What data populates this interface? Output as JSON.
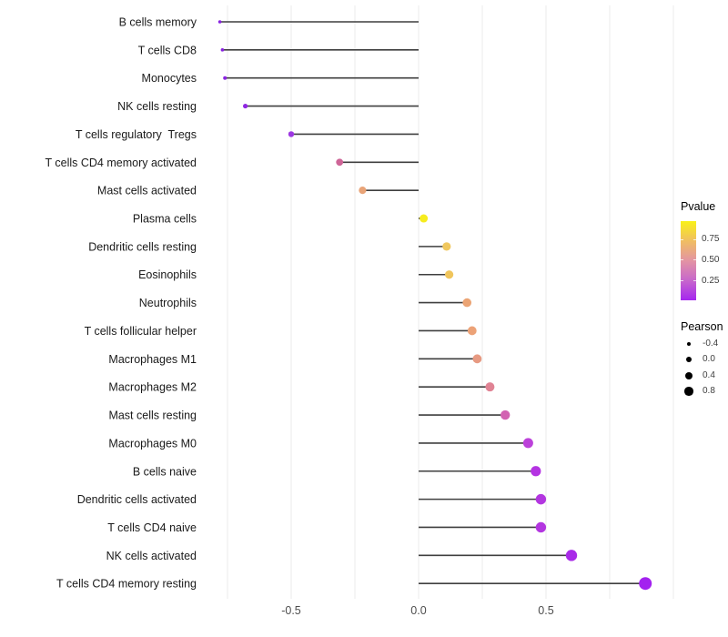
{
  "colors": {
    "background": "#ffffff",
    "grid": "#ebebeb",
    "stem": "#3f3f3f",
    "row_label_text": "#1a1a1a",
    "axis_tick_text": "#4d4d4d",
    "legend_text": "#3f3f3f",
    "legend_dot": "#000000"
  },
  "chart_data": {
    "type": "lollipop",
    "title": "",
    "xlabel": "",
    "ylabel": "",
    "xlim": [
      -0.8,
      1.2
    ],
    "grid": "vertical-only",
    "gridline_values": [
      -0.75,
      -0.5,
      -0.25,
      0,
      0.25,
      0.5,
      0.75,
      1.0
    ],
    "x_ticks": [
      {
        "value": -0.5,
        "label": "-0.5"
      },
      {
        "value": 0.0,
        "label": "0.0"
      },
      {
        "value": 0.5,
        "label": "0.5"
      }
    ],
    "rows": [
      {
        "label": "B cells memory",
        "pearson": -0.78,
        "pvalue": 0.04,
        "color": "#8822e0",
        "radius": 1.8
      },
      {
        "label": "T cells CD8",
        "pearson": -0.77,
        "pvalue": 0.04,
        "color": "#8822e0",
        "radius": 1.8
      },
      {
        "label": "Monocytes",
        "pearson": -0.76,
        "pvalue": 0.05,
        "color": "#8a24e1",
        "radius": 2.0
      },
      {
        "label": "NK cells resting",
        "pearson": -0.68,
        "pvalue": 0.09,
        "color": "#9027e3",
        "radius": 2.6
      },
      {
        "label": "T cells regulatory  Tregs",
        "pearson": -0.5,
        "pvalue": 0.15,
        "color": "#9d38e2",
        "radius": 3.2
      },
      {
        "label": "T cells CD4 memory activated",
        "pearson": -0.31,
        "pvalue": 0.45,
        "color": "#ce6597",
        "radius": 3.9
      },
      {
        "label": "Mast cells activated",
        "pearson": -0.22,
        "pvalue": 0.62,
        "color": "#e9a478",
        "radius": 4.1
      },
      {
        "label": "Plasma cells",
        "pearson": 0.02,
        "pvalue": 0.95,
        "color": "#f6ec1f",
        "radius": 4.5
      },
      {
        "label": "Dendritic cells resting",
        "pearson": 0.11,
        "pvalue": 0.78,
        "color": "#f0c75e",
        "radius": 4.6
      },
      {
        "label": "Eosinophils",
        "pearson": 0.12,
        "pvalue": 0.78,
        "color": "#f0c55c",
        "radius": 4.6
      },
      {
        "label": "Neutrophils",
        "pearson": 0.19,
        "pvalue": 0.62,
        "color": "#eba474",
        "radius": 4.8
      },
      {
        "label": "T cells follicular helper",
        "pearson": 0.21,
        "pvalue": 0.6,
        "color": "#eca277",
        "radius": 4.9
      },
      {
        "label": "Macrophages M1",
        "pearson": 0.23,
        "pvalue": 0.57,
        "color": "#e79a82",
        "radius": 4.9
      },
      {
        "label": "Macrophages M2",
        "pearson": 0.28,
        "pvalue": 0.5,
        "color": "#e08394",
        "radius": 5.0
      },
      {
        "label": "Mast cells resting",
        "pearson": 0.34,
        "pvalue": 0.38,
        "color": "#d263b2",
        "radius": 5.2
      },
      {
        "label": "Macrophages M0",
        "pearson": 0.43,
        "pvalue": 0.22,
        "color": "#bc41da",
        "radius": 5.5
      },
      {
        "label": "B cells naive",
        "pearson": 0.46,
        "pvalue": 0.18,
        "color": "#b433e2",
        "radius": 5.6
      },
      {
        "label": "Dendritic cells activated",
        "pearson": 0.48,
        "pvalue": 0.17,
        "color": "#b336e0",
        "radius": 5.7
      },
      {
        "label": "T cells CD4 naive",
        "pearson": 0.48,
        "pvalue": 0.17,
        "color": "#b336e0",
        "radius": 5.7
      },
      {
        "label": "NK cells activated",
        "pearson": 0.6,
        "pvalue": 0.1,
        "color": "#a92be8",
        "radius": 6.2
      },
      {
        "label": "T cells CD4 memory resting",
        "pearson": 0.89,
        "pvalue": 0.02,
        "color": "#a322ef",
        "radius": 7.0
      }
    ],
    "legends": {
      "pvalue": {
        "title": "Pvalue",
        "ticks": [
          {
            "value": 0.75,
            "label": "0.75"
          },
          {
            "value": 0.5,
            "label": "0.50"
          },
          {
            "value": 0.25,
            "label": "0.25"
          }
        ],
        "bar_range": [
          0.015,
          0.97
        ],
        "gradient_bottom_to_top": [
          "#a526ef",
          "#c767cc",
          "#e394a3",
          "#f0be62",
          "#f9f118"
        ]
      },
      "pearson": {
        "title": "Pearson",
        "items": [
          {
            "label": "-0.4",
            "radius": 2.4
          },
          {
            "label": "0.0",
            "radius": 3.2
          },
          {
            "label": "0.4",
            "radius": 4.0
          },
          {
            "label": "0.8",
            "radius": 4.7
          }
        ]
      }
    }
  }
}
